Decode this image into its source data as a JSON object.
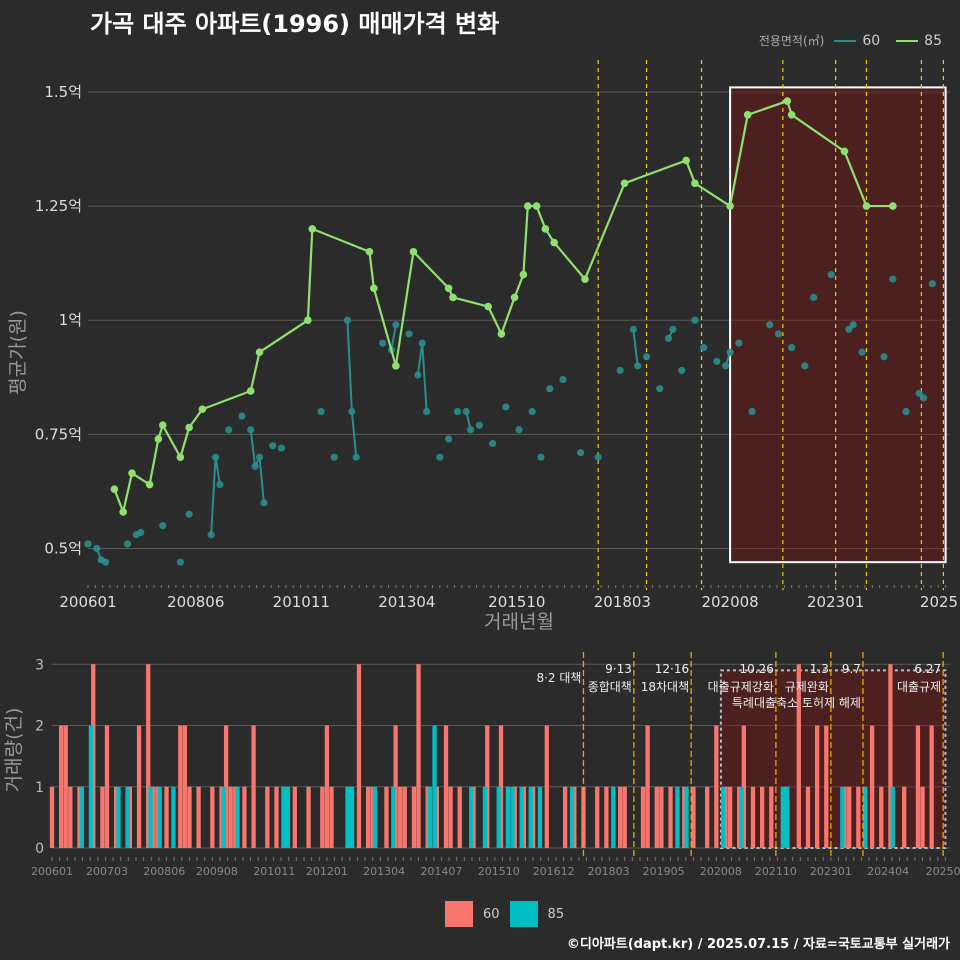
{
  "title": "가곡 대주 아파트(1996) 매매가격 변화",
  "legend": {
    "label": "전용면적(㎡)",
    "items": [
      {
        "name": "60",
        "color": "#2a8c8c"
      },
      {
        "name": "85",
        "color": "#90e070"
      }
    ]
  },
  "bottom_legend": [
    {
      "name": "60",
      "color": "#f8766d"
    },
    {
      "name": "85",
      "color": "#00bfc4"
    }
  ],
  "footer": "©디아파트(dapt.kr) / 2025.07.15 / 자료=국토교통부 실거래가",
  "chart_data": [
    {
      "type": "line",
      "xlabel": "거래년월",
      "ylabel": "평균가(원)",
      "x_tick_labels": [
        "200601",
        "200806",
        "201011",
        "201304",
        "201510",
        "201803",
        "202008",
        "202301",
        "2025"
      ],
      "y_tick_labels": [
        "0.5억",
        "0.75억",
        "1억",
        "1.25억",
        "1.5억"
      ],
      "y_ticks": [
        0.5,
        0.75,
        1.0,
        1.25,
        1.5
      ],
      "ylim": [
        0.42,
        1.57
      ],
      "xlim": [
        2006.0,
        2025.6
      ],
      "x_unit": "year (fractional)",
      "y_unit": "억원",
      "highlight_region": [
        2020.6,
        2025.5
      ],
      "policy_lines": [
        2017.6,
        2018.7,
        2019.95,
        2021.8,
        2023.0,
        2023.7,
        2024.95,
        2025.45
      ],
      "series": [
        {
          "name": "85",
          "x": [
            2006.6,
            2006.8,
            2007.0,
            2007.4,
            2007.6,
            2007.7,
            2008.1,
            2008.3,
            2008.6,
            2009.7,
            2009.9,
            2011.0,
            2011.1,
            2012.4,
            2012.5,
            2013.0,
            2013.4,
            2014.2,
            2014.3,
            2015.1,
            2015.4,
            2015.7,
            2015.9,
            2016.0,
            2016.2,
            2016.4,
            2016.6,
            2017.3,
            2018.2,
            2019.6,
            2019.8,
            2020.6,
            2021.0,
            2021.9,
            2022.0,
            2023.2,
            2023.7,
            2024.3
          ],
          "y": [
            0.63,
            0.58,
            0.665,
            0.64,
            0.74,
            0.77,
            0.7,
            0.765,
            0.805,
            0.845,
            0.93,
            1.0,
            1.2,
            1.15,
            1.07,
            0.9,
            1.15,
            1.07,
            1.05,
            1.03,
            0.97,
            1.05,
            1.1,
            1.25,
            1.25,
            1.2,
            1.17,
            1.09,
            1.3,
            1.35,
            1.3,
            1.25,
            1.45,
            1.48,
            1.45,
            1.37,
            1.25,
            1.25
          ]
        },
        {
          "name": "60",
          "x": [
            2006.0,
            2006.2,
            2006.3,
            2006.4,
            2006.9,
            2007.1,
            2007.2,
            2007.7,
            2008.1,
            2008.3,
            2008.8,
            2008.9,
            2009.0,
            2009.2,
            2009.5,
            2009.7,
            2009.8,
            2009.9,
            2010.0,
            2010.2,
            2010.4,
            2011.3,
            2011.6,
            2011.9,
            2012.0,
            2012.1,
            2012.7,
            2012.9,
            2013.0,
            2013.3,
            2013.5,
            2013.6,
            2013.7,
            2014.0,
            2014.2,
            2014.4,
            2014.6,
            2014.7,
            2014.9,
            2015.2,
            2015.5,
            2015.8,
            2016.1,
            2016.3,
            2016.5,
            2016.8,
            2017.2,
            2017.6,
            2018.1,
            2018.4,
            2018.5,
            2018.7,
            2019.0,
            2019.2,
            2019.3,
            2019.5,
            2019.8,
            2020.0,
            2020.3,
            2020.5,
            2020.6,
            2020.8,
            2021.1,
            2021.5,
            2021.7,
            2022.0,
            2022.3,
            2022.5,
            2022.9,
            2023.3,
            2023.4,
            2023.6,
            2024.1,
            2024.3,
            2024.6,
            2024.9,
            2025.0,
            2025.2
          ],
          "y": [
            0.51,
            0.5,
            0.475,
            0.47,
            0.51,
            0.53,
            0.535,
            0.55,
            0.47,
            0.575,
            0.53,
            0.7,
            0.64,
            0.76,
            0.79,
            0.76,
            0.68,
            0.7,
            0.6,
            0.725,
            0.72,
            0.8,
            0.7,
            1.0,
            0.8,
            0.7,
            0.95,
            0.935,
            0.99,
            0.97,
            0.88,
            0.95,
            0.8,
            0.7,
            0.74,
            0.8,
            0.8,
            0.76,
            0.77,
            0.73,
            0.81,
            0.76,
            0.8,
            0.7,
            0.85,
            0.87,
            0.71,
            0.7,
            0.89,
            0.98,
            0.9,
            0.92,
            0.85,
            0.96,
            0.98,
            0.89,
            1.0,
            0.94,
            0.91,
            0.9,
            0.93,
            0.95,
            0.8,
            0.99,
            0.97,
            0.94,
            0.9,
            1.05,
            1.1,
            0.98,
            0.99,
            0.93,
            0.92,
            1.09,
            0.8,
            0.84,
            0.83,
            1.08
          ]
        }
      ]
    },
    {
      "type": "bar",
      "xlabel": "",
      "ylabel": "거래량(건)",
      "x_tick_labels": [
        "200601",
        "200703",
        "200806",
        "200908",
        "201011",
        "201201",
        "201304",
        "201407",
        "201510",
        "201612",
        "201803",
        "201905",
        "202008",
        "202110",
        "202301",
        "202404",
        "20250"
      ],
      "y_tick_labels": [
        "0",
        "1",
        "2",
        "3"
      ],
      "y_ticks": [
        0,
        1,
        2,
        3
      ],
      "ylim": [
        0,
        3.2
      ],
      "xlim": [
        2006.0,
        2025.6
      ],
      "highlight_region": [
        2020.6,
        2025.5
      ],
      "policy_annotations": [
        {
          "x": 2017.6,
          "label1": "8·2 대책",
          "label2": ""
        },
        {
          "x": 2018.7,
          "label1": "9·13",
          "label2": "종합대책"
        },
        {
          "x": 2019.95,
          "label1": "12·16",
          "label2": "18차대책"
        },
        {
          "x": 2021.8,
          "label1": "10.26",
          "label2": "대출규제강화"
        },
        {
          "x": 2023.0,
          "label1": "1.3",
          "label2": "규제완화"
        },
        {
          "x": 2023.7,
          "label1": "9.7",
          "label2": "특례대출축소 토허제 해제"
        },
        {
          "x": 2025.45,
          "label1": "6.27",
          "label2": "대출규제"
        }
      ],
      "series": [
        {
          "name": "60",
          "x": [
            2006.0,
            2006.2,
            2006.3,
            2006.4,
            2006.6,
            2006.9,
            2007.1,
            2007.2,
            2007.4,
            2007.7,
            2007.9,
            2008.1,
            2008.2,
            2008.3,
            2008.5,
            2008.8,
            2008.9,
            2009.0,
            2009.2,
            2009.5,
            2009.7,
            2009.8,
            2009.9,
            2010.0,
            2010.2,
            2010.4,
            2010.7,
            2010.9,
            2011.1,
            2011.3,
            2011.6,
            2011.9,
            2012.0,
            2012.1,
            2012.5,
            2012.7,
            2012.9,
            2013.0,
            2013.3,
            2013.5,
            2013.6,
            2013.7,
            2013.9,
            2014.0,
            2014.2,
            2014.4,
            2014.6,
            2014.7,
            2014.9,
            2015.2,
            2015.5,
            2015.8,
            2016.1,
            2016.3,
            2016.5,
            2016.8,
            2017.2,
            2017.4,
            2017.6,
            2017.9,
            2018.1,
            2018.4,
            2018.5,
            2018.9,
            2019.0,
            2019.2,
            2019.3,
            2019.5,
            2019.8,
            2020.0,
            2020.3,
            2020.5,
            2020.7,
            2020.8,
            2021.0,
            2021.1,
            2021.3,
            2021.5,
            2021.7,
            2022.0,
            2022.3,
            2022.5,
            2022.7,
            2022.9,
            2023.3,
            2023.4,
            2023.6,
            2023.9,
            2024.1,
            2024.3,
            2024.6,
            2024.9,
            2025.0,
            2025.2
          ],
          "values": [
            1,
            2,
            2,
            1,
            1,
            3,
            1,
            2,
            1,
            1,
            2,
            3,
            1,
            1,
            1,
            2,
            2,
            1,
            1,
            1,
            1,
            2,
            1,
            1,
            1,
            2,
            1,
            1,
            1,
            1,
            1,
            1,
            2,
            1,
            1,
            3,
            1,
            1,
            1,
            2,
            1,
            1,
            1,
            3,
            1,
            1,
            2,
            1,
            1,
            1,
            2,
            2,
            1,
            1,
            1,
            2,
            1,
            1,
            1,
            1,
            1,
            1,
            1,
            1,
            2,
            1,
            1,
            1,
            1,
            1,
            1,
            2,
            1,
            1,
            1,
            2,
            1,
            1,
            1,
            1,
            3,
            1,
            2,
            2,
            1,
            1,
            1,
            2,
            1,
            3,
            1,
            2,
            1,
            2
          ]
        },
        {
          "name": "85",
          "x": [
            2006.65,
            2006.85,
            2007.45,
            2007.65,
            2008.15,
            2008.35,
            2008.65,
            2009.75,
            2010.05,
            2011.05,
            2011.15,
            2012.45,
            2012.55,
            2013.05,
            2013.45,
            2014.25,
            2014.35,
            2015.15,
            2015.45,
            2015.75,
            2015.95,
            2016.05,
            2016.25,
            2016.45,
            2016.65,
            2017.35,
            2018.25,
            2019.65,
            2019.85,
            2020.65,
            2021.05,
            2021.95,
            2022.05,
            2023.25,
            2023.75,
            2024.35
          ],
          "values": [
            1,
            2,
            1,
            1,
            1,
            1,
            1,
            1,
            1,
            1,
            1,
            1,
            1,
            1,
            1,
            1,
            2,
            1,
            1,
            1,
            1,
            1,
            1,
            1,
            1,
            1,
            1,
            1,
            1,
            1,
            1,
            1,
            1,
            1,
            1,
            1
          ]
        }
      ]
    }
  ]
}
